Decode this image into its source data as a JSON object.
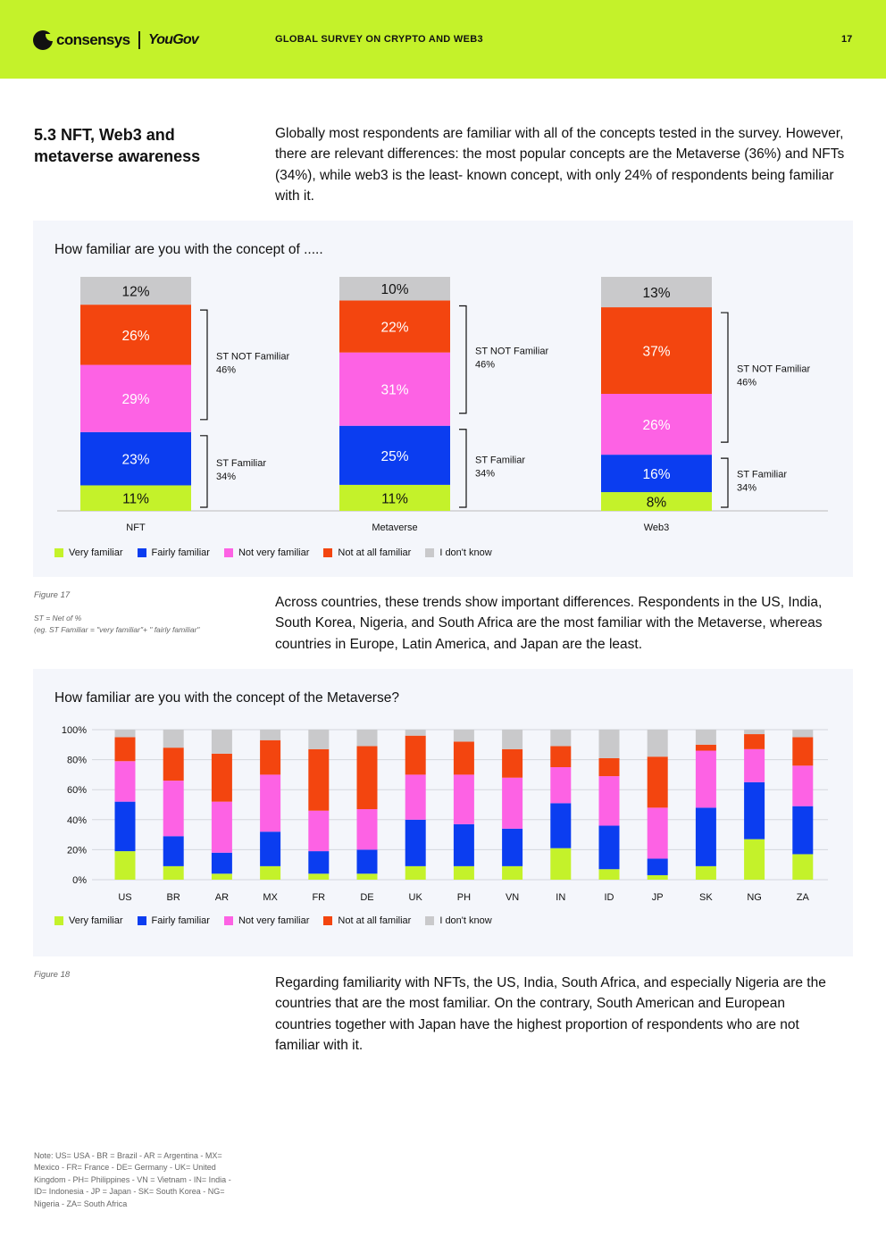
{
  "header": {
    "logo_text": "consensys",
    "partner_logo": "YouGov",
    "title": "GLOBAL SURVEY ON CRYPTO AND WEB3",
    "page_number": "17",
    "background_color": "#c4f22a"
  },
  "section": {
    "title": "5.3 NFT, Web3 and metaverse awareness",
    "intro": "Globally most respondents are familiar with all of the concepts tested in the survey. However, there are relevant differences: the most popular concepts are the Metaverse (36%) and NFTs (34%), while web3 is the least- known concept, with only 24% of respondents being familiar with it."
  },
  "legend": [
    "Very familiar",
    "Fairly familiar",
    "Not very familiar",
    "Not at all familiar",
    "I don't know"
  ],
  "colors": {
    "very_familiar": "#c4f22a",
    "fairly_familiar": "#0b3df0",
    "not_very_familiar": "#fd62e4",
    "not_at_all_familiar": "#f3450f",
    "dont_know": "#c9c9cb"
  },
  "figure17": {
    "caption": "Figure 17",
    "note_line1": "ST = Net of %",
    "note_line2": "(eg. ST Familiar = \"very familiar\"+ \" fairly familiar\""
  },
  "paragraph2": "Across countries, these trends show important differences. Respondents in the US, India, South Korea, Nigeria, and South Africa are the most familiar with the Metaverse, whereas countries in Europe, Latin America, and Japan are the least.",
  "figure18": {
    "caption": "Figure 18"
  },
  "paragraph3": "Regarding familiarity with NFTs, the US, India, South Africa, and especially Nigeria are the countries that are the most familiar. On the contrary, South American and European countries together with Japan have the highest proportion of respondents who are not familiar with it.",
  "country_note": "Note: US= USA - BR = Brazil - AR = Argentina - MX= Mexico - FR= France - DE= Germany - UK= United Kingdom - PH= Philippines - VN = Vietnam - IN= India - ID= Indonesia - JP = Japan - SK= South Korea - NG= Nigeria - ZA= South Africa",
  "chart_data": [
    {
      "type": "bar",
      "stacked": true,
      "title": "How familiar are you with the concept of .....",
      "categories": [
        "NFT",
        "Metaverse",
        "Web3"
      ],
      "series": [
        {
          "name": "Very familiar",
          "values": [
            11,
            11,
            8
          ]
        },
        {
          "name": "Fairly familiar",
          "values": [
            23,
            25,
            16
          ]
        },
        {
          "name": "Not very familiar",
          "values": [
            29,
            31,
            26
          ]
        },
        {
          "name": "Not at all familiar",
          "values": [
            26,
            22,
            37
          ]
        },
        {
          "name": "I don't know",
          "values": [
            12,
            10,
            13
          ]
        }
      ],
      "value_labels": [
        [
          "11%",
          "23%",
          "29%",
          "26%",
          "12%"
        ],
        [
          "11%",
          "25%",
          "31%",
          "22%",
          "10%"
        ],
        [
          "8%",
          "16%",
          "26%",
          "37%",
          "13%"
        ]
      ],
      "annotations": [
        {
          "label": "ST NOT Familiar",
          "values": [
            "46%",
            "46%",
            "46%"
          ]
        },
        {
          "label": "ST Familiar",
          "values": [
            "34%",
            "34%",
            "34%"
          ]
        }
      ],
      "legend_position": "bottom-left"
    },
    {
      "type": "bar",
      "stacked": true,
      "title": "How familiar are you with the concept of the Metaverse?",
      "categories": [
        "US",
        "BR",
        "AR",
        "MX",
        "FR",
        "DE",
        "UK",
        "PH",
        "VN",
        "IN",
        "ID",
        "JP",
        "SK",
        "NG",
        "ZA"
      ],
      "series": [
        {
          "name": "Very familiar",
          "values": [
            19,
            9,
            4,
            9,
            4,
            4,
            9,
            9,
            9,
            21,
            7,
            3,
            9,
            27,
            17
          ]
        },
        {
          "name": "Fairly familiar",
          "values": [
            33,
            20,
            14,
            23,
            15,
            16,
            31,
            28,
            25,
            30,
            29,
            11,
            39,
            38,
            32
          ]
        },
        {
          "name": "Not very familiar",
          "values": [
            27,
            37,
            34,
            38,
            27,
            27,
            30,
            33,
            34,
            24,
            33,
            34,
            38,
            22,
            27
          ]
        },
        {
          "name": "Not at all familiar",
          "values": [
            16,
            22,
            32,
            23,
            41,
            42,
            26,
            22,
            19,
            14,
            12,
            34,
            4,
            10,
            19
          ]
        },
        {
          "name": "I don't know",
          "values": [
            5,
            12,
            16,
            7,
            13,
            11,
            4,
            8,
            13,
            11,
            19,
            18,
            10,
            3,
            5
          ]
        }
      ],
      "ylim": [
        0,
        100
      ],
      "yticks": [
        "0%",
        "20%",
        "40%",
        "60%",
        "80%",
        "100%"
      ],
      "grid": true,
      "legend_position": "bottom-left"
    }
  ]
}
